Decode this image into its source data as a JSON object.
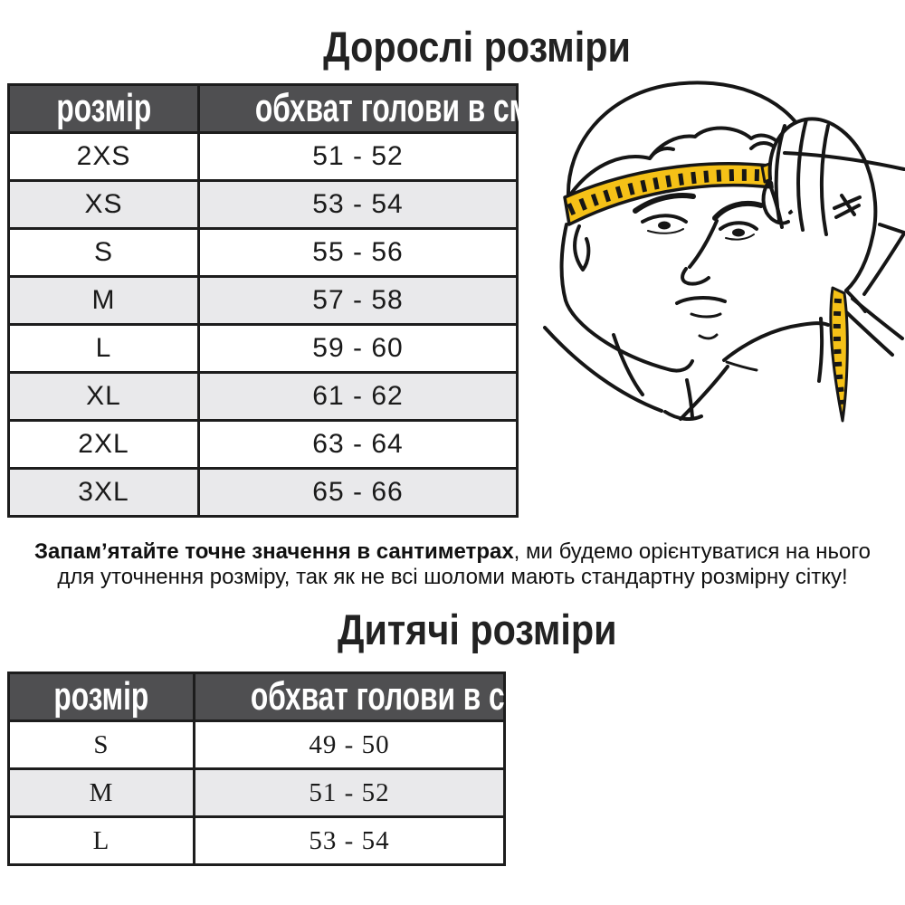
{
  "colors": {
    "header_bg": "#4f4f51",
    "header_text": "#ffffff",
    "row_alt_bg": "#e9e9eb",
    "table_border": "#1d1d1d",
    "tape_yellow": "#f5c117",
    "line_ink": "#161616"
  },
  "adult": {
    "title": "Дорослі розміри",
    "col_size": "розмір",
    "col_cm": "обхват голови в см.",
    "rows": [
      {
        "size": "2XS",
        "cm": "51 - 52"
      },
      {
        "size": "XS",
        "cm": "53 - 54"
      },
      {
        "size": "S",
        "cm": "55 - 56"
      },
      {
        "size": "M",
        "cm": "57 - 58"
      },
      {
        "size": "L",
        "cm": "59 - 60"
      },
      {
        "size": "XL",
        "cm": "61 - 62"
      },
      {
        "size": "2XL",
        "cm": "63 - 64"
      },
      {
        "size": "3XL",
        "cm": "65 - 66"
      }
    ]
  },
  "note": {
    "bold": "Запам’ятайте точне значення в сантиметрах",
    "rest_line1": ", ми будемо орієнтуватися на нього",
    "line2": "для уточнення розміру, так як не всі шоломи мають стандартну розмірну сітку!"
  },
  "kids": {
    "title": "Дитячі розміри",
    "col_size": "розмір",
    "col_cm": "обхват голови в см.",
    "rows": [
      {
        "size": "S",
        "cm": "49 - 50"
      },
      {
        "size": "M",
        "cm": "51 - 52"
      },
      {
        "size": "L",
        "cm": "53 - 54"
      }
    ]
  },
  "illustration": {
    "description": "man measuring head circumference with yellow measuring tape"
  }
}
